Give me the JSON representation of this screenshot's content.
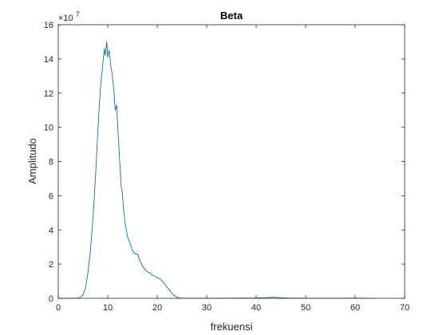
{
  "chart_data": {
    "type": "line",
    "title": "Beta",
    "xlabel": "frekuensi",
    "ylabel": "Amplitudo",
    "xlim": [
      0,
      70
    ],
    "ylim": [
      0,
      16
    ],
    "xticks": [
      "0",
      "10",
      "20",
      "30",
      "40",
      "50",
      "60",
      "70"
    ],
    "yticks": [
      "0",
      "2",
      "4",
      "6",
      "8",
      "10",
      "12",
      "14",
      "16"
    ],
    "y_exponent": {
      "base": "×10",
      "power": "7"
    },
    "grid": false,
    "box": true,
    "line_color": "#0072BD",
    "series": [
      {
        "x": [
          0,
          3.5,
          4.2,
          5,
          5.5,
          6,
          6.5,
          7,
          7.5,
          8,
          8.5,
          9,
          9.3,
          9.5,
          9.8,
          10,
          10.3,
          10.6,
          10.9,
          11.2,
          11.5,
          11.8,
          12.1,
          12.4,
          12.7,
          12.9,
          13.2,
          13.5,
          14,
          14.5,
          15,
          15.5,
          16,
          16.5,
          17,
          17.5,
          18,
          18.5,
          19,
          19.5,
          20,
          20.5,
          21,
          21.5,
          22,
          22.5,
          23,
          23.5,
          24,
          24.5,
          25,
          27,
          30,
          35,
          40,
          42,
          43.5,
          45,
          47,
          50,
          55,
          60,
          63,
          64
        ],
        "y": [
          0,
          0,
          0.02,
          0.2,
          0.6,
          1.5,
          2.8,
          4.6,
          7.0,
          9.8,
          12.2,
          13.7,
          14.6,
          14.2,
          15.0,
          14.1,
          14.5,
          13.6,
          13.1,
          12.3,
          11.0,
          11.3,
          9.6,
          8.1,
          6.6,
          6.3,
          5.2,
          4.4,
          3.6,
          3.2,
          2.8,
          2.6,
          2.6,
          2.2,
          1.9,
          1.7,
          1.55,
          1.5,
          1.35,
          1.3,
          1.2,
          1.15,
          1.0,
          0.85,
          0.65,
          0.45,
          0.28,
          0.15,
          0.06,
          0.02,
          0.01,
          0.005,
          0.005,
          0.01,
          0.02,
          0.04,
          0.06,
          0.03,
          0.01,
          0.005,
          0.005,
          0.01,
          0.005,
          0
        ]
      }
    ]
  }
}
